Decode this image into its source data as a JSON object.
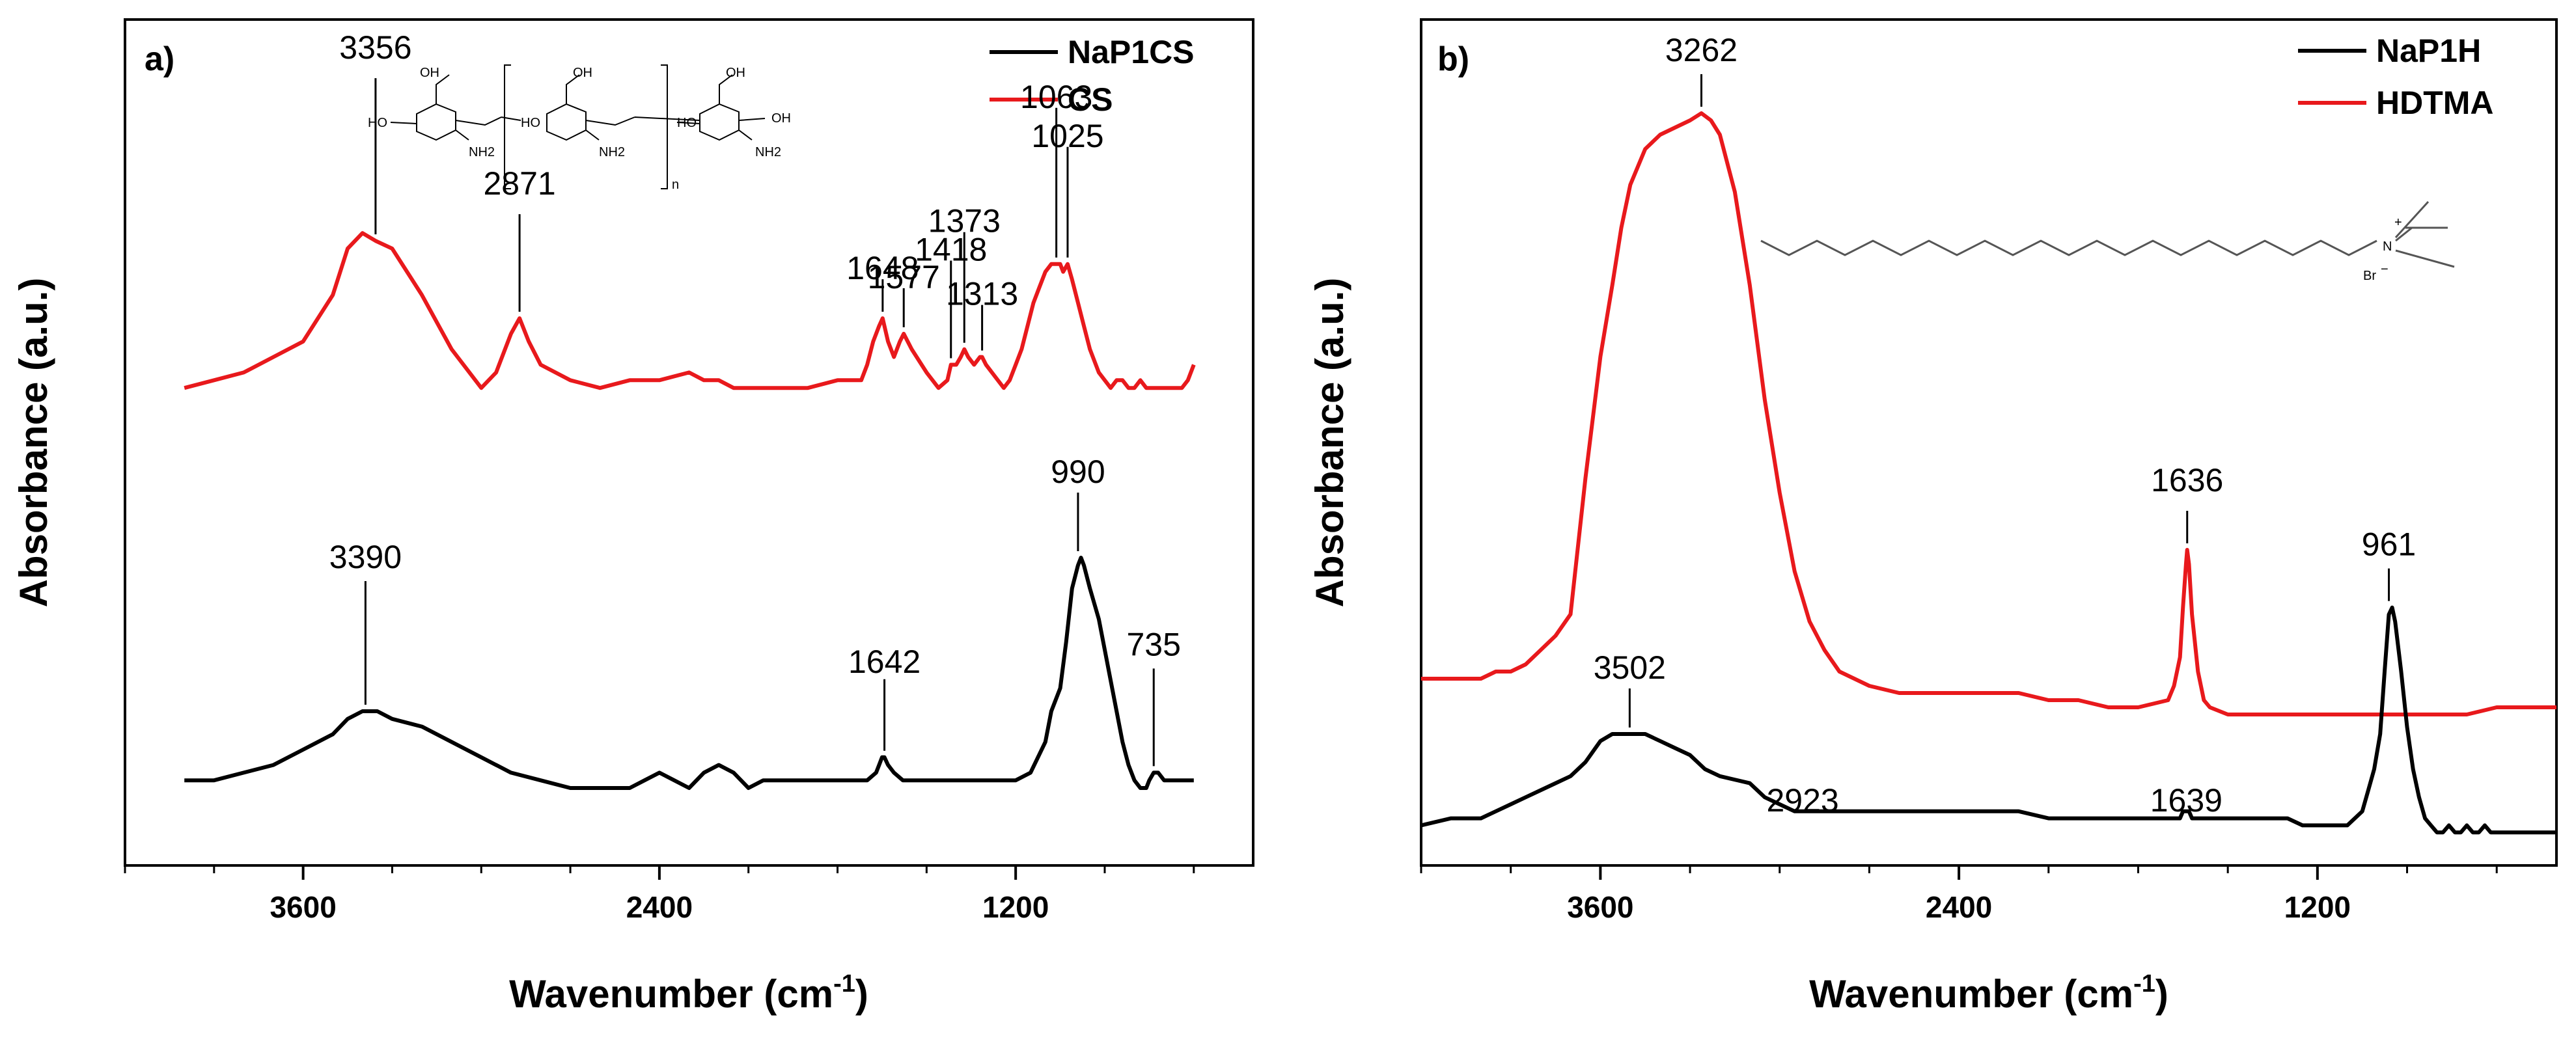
{
  "chart_data": [
    {
      "type": "line",
      "panel_label": "a)",
      "xlabel": "Wavenumber (cm-1)",
      "xlabel_main": "Wavenumber (cm",
      "xlabel_sup": "-1",
      "xlabel_close": ")",
      "ylabel": "Absorbance (a.u.)",
      "xlim": [
        4200,
        400
      ],
      "x_ticks": [
        3600,
        2400,
        1200
      ],
      "x_tick_labels": [
        "3600",
        "2400",
        "1200"
      ],
      "ylim": [
        0,
        1
      ],
      "legend": [
        {
          "name": "NaP1CS",
          "color": "#000000"
        },
        {
          "name": "CS",
          "color": "#e8191c"
        }
      ],
      "series": [
        {
          "name": "CS",
          "color": "#e8191c",
          "x": [
            4000,
            3900,
            3800,
            3700,
            3600,
            3500,
            3450,
            3400,
            3356,
            3300,
            3250,
            3200,
            3100,
            3000,
            2950,
            2900,
            2871,
            2840,
            2800,
            2700,
            2600,
            2500,
            2400,
            2300,
            2250,
            2200,
            2150,
            2100,
            2000,
            1900,
            1800,
            1720,
            1700,
            1680,
            1660,
            1648,
            1630,
            1610,
            1590,
            1577,
            1550,
            1500,
            1460,
            1430,
            1418,
            1400,
            1385,
            1373,
            1360,
            1340,
            1320,
            1313,
            1300,
            1280,
            1260,
            1240,
            1220,
            1200,
            1180,
            1160,
            1140,
            1120,
            1100,
            1080,
            1063,
            1050,
            1040,
            1025,
            1010,
            990,
            970,
            950,
            920,
            900,
            880,
            860,
            840,
            820,
            800,
            780,
            760,
            740,
            720,
            700,
            680,
            660,
            640,
            620,
            600
          ],
          "values": [
            0.52,
            0.53,
            0.54,
            0.56,
            0.58,
            0.64,
            0.7,
            0.72,
            0.71,
            0.7,
            0.67,
            0.64,
            0.57,
            0.52,
            0.54,
            0.59,
            0.61,
            0.58,
            0.55,
            0.53,
            0.52,
            0.53,
            0.53,
            0.54,
            0.53,
            0.53,
            0.52,
            0.52,
            0.52,
            0.52,
            0.53,
            0.53,
            0.55,
            0.58,
            0.6,
            0.61,
            0.58,
            0.56,
            0.58,
            0.59,
            0.57,
            0.54,
            0.52,
            0.53,
            0.55,
            0.55,
            0.56,
            0.57,
            0.56,
            0.55,
            0.56,
            0.56,
            0.55,
            0.54,
            0.53,
            0.52,
            0.53,
            0.55,
            0.57,
            0.6,
            0.63,
            0.65,
            0.67,
            0.68,
            0.68,
            0.68,
            0.67,
            0.68,
            0.66,
            0.63,
            0.6,
            0.57,
            0.54,
            0.53,
            0.52,
            0.53,
            0.53,
            0.52,
            0.52,
            0.53,
            0.52,
            0.52,
            0.52,
            0.52,
            0.52,
            0.52,
            0.52,
            0.53,
            0.55
          ]
        },
        {
          "name": "NaP1CS",
          "color": "#000000",
          "x": [
            4000,
            3900,
            3800,
            3700,
            3600,
            3500,
            3450,
            3400,
            3390,
            3350,
            3300,
            3200,
            3100,
            3000,
            2900,
            2800,
            2700,
            2600,
            2500,
            2450,
            2400,
            2350,
            2300,
            2250,
            2200,
            2150,
            2100,
            2050,
            2000,
            1900,
            1800,
            1700,
            1670,
            1660,
            1650,
            1642,
            1630,
            1610,
            1580,
            1550,
            1500,
            1400,
            1300,
            1250,
            1200,
            1150,
            1100,
            1080,
            1050,
            1030,
            1010,
            990,
            980,
            970,
            950,
            920,
            900,
            880,
            860,
            840,
            820,
            800,
            780,
            760,
            750,
            735,
            720,
            700,
            680,
            660,
            640,
            620,
            600
          ],
          "values": [
            0.06,
            0.06,
            0.07,
            0.08,
            0.1,
            0.12,
            0.14,
            0.15,
            0.15,
            0.15,
            0.14,
            0.13,
            0.11,
            0.09,
            0.07,
            0.06,
            0.05,
            0.05,
            0.05,
            0.06,
            0.07,
            0.06,
            0.05,
            0.07,
            0.08,
            0.07,
            0.05,
            0.06,
            0.06,
            0.06,
            0.06,
            0.06,
            0.07,
            0.08,
            0.09,
            0.09,
            0.08,
            0.07,
            0.06,
            0.06,
            0.06,
            0.06,
            0.06,
            0.06,
            0.06,
            0.07,
            0.11,
            0.15,
            0.18,
            0.24,
            0.31,
            0.34,
            0.35,
            0.34,
            0.31,
            0.27,
            0.23,
            0.19,
            0.15,
            0.11,
            0.08,
            0.06,
            0.05,
            0.05,
            0.06,
            0.07,
            0.07,
            0.06,
            0.06,
            0.06,
            0.06,
            0.06,
            0.06
          ]
        }
      ],
      "annotations": [
        {
          "text": "3356",
          "x": 3356,
          "y": 0.71
        },
        {
          "text": "2871",
          "x": 2871,
          "y": 0.61
        },
        {
          "text": "1648",
          "x": 1648,
          "y": 0.61
        },
        {
          "text": "1577",
          "x": 1577,
          "y": 0.59
        },
        {
          "text": "1418",
          "x": 1418,
          "y": 0.55
        },
        {
          "text": "1373",
          "x": 1373,
          "y": 0.57
        },
        {
          "text": "1313",
          "x": 1313,
          "y": 0.56
        },
        {
          "text": "1063",
          "x": 1063,
          "y": 0.68
        },
        {
          "text": "1025",
          "x": 1025,
          "y": 0.68
        },
        {
          "text": "3390",
          "x": 3390,
          "y": 0.15
        },
        {
          "text": "1642",
          "x": 1642,
          "y": 0.09
        },
        {
          "text": "990",
          "x": 990,
          "y": 0.35
        },
        {
          "text": "735",
          "x": 735,
          "y": 0.07
        }
      ]
    },
    {
      "type": "line",
      "panel_label": "b)",
      "xlabel": "Wavenumber (cm-1)",
      "xlabel_main": "Wavenumber (cm",
      "xlabel_sup": "-1",
      "xlabel_close": ")",
      "ylabel": "Absorbance (a.u.)",
      "xlim": [
        4200,
        400
      ],
      "x_ticks": [
        3600,
        2400,
        1200
      ],
      "x_tick_labels": [
        "3600",
        "2400",
        "1200"
      ],
      "ylim": [
        0,
        1
      ],
      "legend": [
        {
          "name": "NaP1H",
          "color": "#000000"
        },
        {
          "name": "HDTMA",
          "color": "#e8191c"
        }
      ],
      "series": [
        {
          "name": "HDTMA",
          "color": "#e8191c",
          "x": [
            4200,
            4100,
            4000,
            3950,
            3900,
            3850,
            3800,
            3750,
            3700,
            3650,
            3600,
            3560,
            3530,
            3500,
            3450,
            3400,
            3350,
            3300,
            3262,
            3230,
            3200,
            3150,
            3100,
            3050,
            3000,
            2950,
            2900,
            2850,
            2800,
            2700,
            2600,
            2500,
            2400,
            2300,
            2200,
            2100,
            2000,
            1900,
            1800,
            1700,
            1680,
            1660,
            1650,
            1640,
            1636,
            1630,
            1620,
            1600,
            1580,
            1560,
            1500,
            1400,
            1300,
            1200,
            1100,
            1000,
            961,
            900,
            800,
            700,
            600,
            500,
            450,
            400
          ],
          "values": [
            0.17,
            0.17,
            0.17,
            0.18,
            0.18,
            0.19,
            0.21,
            0.23,
            0.26,
            0.45,
            0.62,
            0.72,
            0.8,
            0.86,
            0.91,
            0.93,
            0.94,
            0.95,
            0.96,
            0.95,
            0.93,
            0.85,
            0.72,
            0.56,
            0.43,
            0.32,
            0.25,
            0.21,
            0.18,
            0.16,
            0.15,
            0.15,
            0.15,
            0.15,
            0.15,
            0.14,
            0.14,
            0.13,
            0.13,
            0.14,
            0.16,
            0.2,
            0.27,
            0.33,
            0.35,
            0.33,
            0.26,
            0.18,
            0.14,
            0.13,
            0.12,
            0.12,
            0.12,
            0.12,
            0.12,
            0.12,
            0.12,
            0.12,
            0.12,
            0.12,
            0.13,
            0.13,
            0.13,
            0.13
          ]
        },
        {
          "name": "NaP1H",
          "color": "#000000",
          "x": [
            4200,
            4100,
            4000,
            3950,
            3900,
            3850,
            3800,
            3750,
            3700,
            3650,
            3600,
            3560,
            3530,
            3502,
            3450,
            3400,
            3350,
            3300,
            3250,
            3200,
            3100,
            3050,
            3000,
            2950,
            2923,
            2900,
            2850,
            2800,
            2700,
            2600,
            2500,
            2400,
            2300,
            2200,
            2100,
            2000,
            1900,
            1800,
            1700,
            1660,
            1650,
            1639,
            1630,
            1620,
            1600,
            1550,
            1500,
            1400,
            1300,
            1250,
            1200,
            1150,
            1100,
            1050,
            1030,
            1010,
            990,
            975,
            961,
            950,
            940,
            920,
            900,
            880,
            860,
            840,
            820,
            800,
            780,
            760,
            740,
            720,
            700,
            680,
            660,
            640,
            620,
            600,
            550,
            500,
            450,
            400
          ],
          "values": [
            0.02,
            0.03,
            0.03,
            0.04,
            0.05,
            0.06,
            0.07,
            0.08,
            0.09,
            0.11,
            0.14,
            0.15,
            0.15,
            0.15,
            0.15,
            0.14,
            0.13,
            0.12,
            0.1,
            0.09,
            0.08,
            0.06,
            0.05,
            0.04,
            0.04,
            0.04,
            0.04,
            0.04,
            0.04,
            0.04,
            0.04,
            0.04,
            0.04,
            0.04,
            0.03,
            0.03,
            0.03,
            0.03,
            0.03,
            0.03,
            0.04,
            0.04,
            0.04,
            0.03,
            0.03,
            0.03,
            0.03,
            0.03,
            0.03,
            0.02,
            0.02,
            0.02,
            0.02,
            0.04,
            0.07,
            0.1,
            0.15,
            0.24,
            0.32,
            0.33,
            0.31,
            0.24,
            0.16,
            0.1,
            0.06,
            0.03,
            0.02,
            0.01,
            0.01,
            0.02,
            0.01,
            0.01,
            0.02,
            0.01,
            0.01,
            0.02,
            0.01,
            0.01,
            0.01,
            0.01,
            0.01,
            0.01
          ]
        }
      ],
      "annotations": [
        {
          "text": "3262",
          "x": 3262,
          "y": 0.96
        },
        {
          "text": "1636",
          "x": 1636,
          "y": 0.35
        },
        {
          "text": "961",
          "x": 961,
          "y": 0.33
        },
        {
          "text": "3502",
          "x": 3502,
          "y": 0.15
        },
        {
          "text": "2923",
          "x": 2923,
          "y": 0.04
        },
        {
          "text": "1639",
          "x": 1639,
          "y": 0.04
        }
      ]
    }
  ],
  "structures": {
    "chitosan_labels": [
      "OH",
      "HO",
      "NH2",
      "n"
    ],
    "hdtma_labels": [
      "N",
      "+",
      "Br",
      "−"
    ]
  }
}
